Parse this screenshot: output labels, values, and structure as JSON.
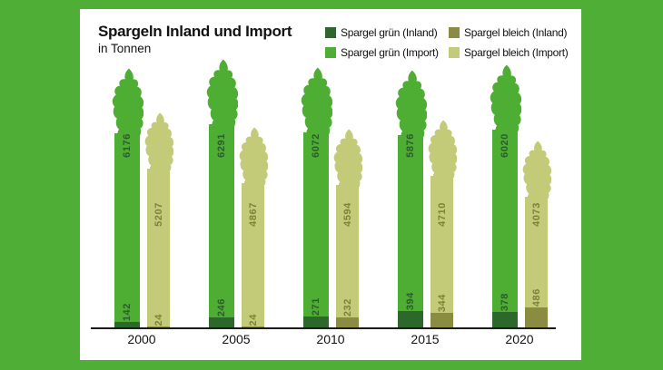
{
  "title": "Spargeln Inland und Import",
  "subtitle": "in Tonnen",
  "colors": {
    "background": "#4fae35",
    "panel": "#ffffff",
    "axis": "#1a1a1a",
    "gruen_inland": "#2c672c",
    "gruen_import": "#4ead33",
    "bleich_inland": "#8a8c41",
    "bleich_import": "#c3cb79",
    "gruen_label": "#295e27",
    "bleich_label": "#7d8137"
  },
  "legend": {
    "items": [
      {
        "label": "Spargel grün (Inland)",
        "color": "#2c672c"
      },
      {
        "label": "Spargel grün (Import)",
        "color": "#4ead33"
      },
      {
        "label": "Spargel bleich (Inland)",
        "color": "#8a8c41"
      },
      {
        "label": "Spargel bleich (Import)",
        "color": "#c3cb79"
      }
    ]
  },
  "chart_data": {
    "type": "bar",
    "bar_style": "asparagus-spear-stacked",
    "title": "Spargeln Inland und Import",
    "ylabel": "Tonnen",
    "xlabel": "",
    "grid": false,
    "legend_position": "top-right",
    "value_labels": "rotated-on-bar",
    "categories": [
      "2000",
      "2005",
      "2010",
      "2015",
      "2020"
    ],
    "series": [
      {
        "name": "Spargel grün (Inland)",
        "color": "#2c672c",
        "values": [
          142,
          246,
          271,
          394,
          378
        ]
      },
      {
        "name": "Spargel grün (Import)",
        "color": "#4ead33",
        "values": [
          6176,
          6291,
          6072,
          5876,
          6020
        ]
      },
      {
        "name": "Spargel bleich (Inland)",
        "color": "#8a8c41",
        "values": [
          24,
          24,
          232,
          344,
          486
        ]
      },
      {
        "name": "Spargel bleich (Import)",
        "color": "#c3cb79",
        "values": [
          5207,
          4867,
          4594,
          4710,
          4073
        ]
      }
    ]
  }
}
